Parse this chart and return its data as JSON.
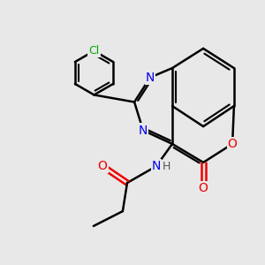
{
  "bg_color": "#e8e8e8",
  "bond_color": "#000000",
  "bond_width": 1.8,
  "atom_colors": {
    "C": "#000000",
    "N": "#0000ee",
    "O": "#ee0000",
    "Cl": "#00aa00",
    "H": "#555555"
  },
  "font_size": 10,
  "font_size_h": 9
}
